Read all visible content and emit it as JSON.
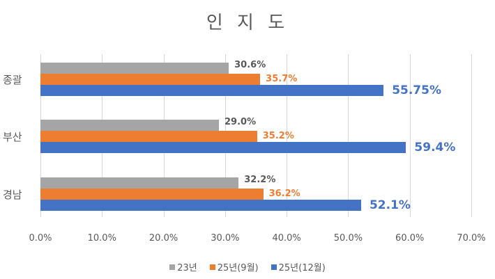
{
  "chart_data": {
    "type": "bar",
    "orientation": "horizontal",
    "title": "인 지 도",
    "categories": [
      "종괄",
      "부산",
      "경남"
    ],
    "series": [
      {
        "name": "23년",
        "color": "#a5a5a5",
        "values": [
          30.6,
          29.0,
          32.2
        ],
        "labels": [
          "30.6%",
          "29.0%",
          "32.2%"
        ]
      },
      {
        "name": "25년(9월)",
        "color": "#ed7d31",
        "values": [
          35.7,
          35.2,
          36.2
        ],
        "labels": [
          "35.7%",
          "35.2%",
          "36.2%"
        ]
      },
      {
        "name": "25년(12월)",
        "color": "#4472c4",
        "values": [
          55.75,
          59.4,
          52.1
        ],
        "labels": [
          "55.75%",
          "59.4%",
          "52.1%"
        ]
      }
    ],
    "xlabel": "",
    "ylabel": "",
    "xlim": [
      0,
      70
    ],
    "xticks": [
      "0.0%",
      "10.0%",
      "20.0%",
      "30.0%",
      "40.0%",
      "50.0%",
      "60.0%",
      "70.0%"
    ],
    "grid": true,
    "legend_position": "bottom"
  }
}
